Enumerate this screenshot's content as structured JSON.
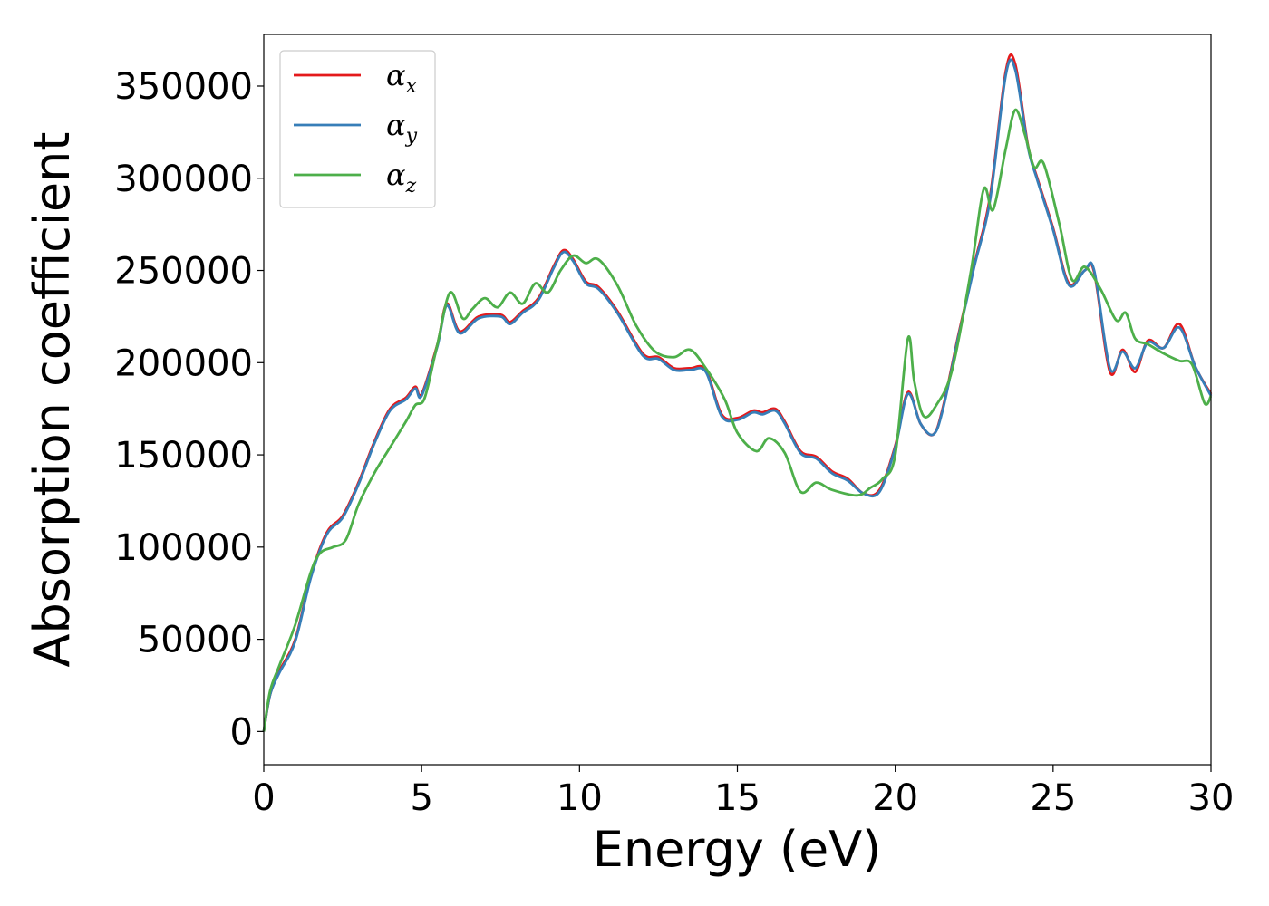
{
  "chart_data": {
    "type": "line",
    "xlabel": "Energy (eV)",
    "ylabel": "Absorption coefficient",
    "xlim": [
      0,
      30
    ],
    "ylim": [
      -18000,
      378000
    ],
    "xticks": [
      0,
      5,
      10,
      15,
      20,
      25,
      30
    ],
    "xtick_labels": [
      "0",
      "5",
      "10",
      "15",
      "20",
      "25",
      "30"
    ],
    "yticks": [
      0,
      50000,
      100000,
      150000,
      200000,
      250000,
      300000,
      350000
    ],
    "ytick_labels": [
      "0",
      "50000",
      "100000",
      "150000",
      "200000",
      "250000",
      "300000",
      "350000"
    ],
    "grid": false,
    "legend_position": "top-left",
    "series": [
      {
        "name": "α",
        "subscript": "x",
        "color": "#e41a1c",
        "x": [
          0,
          0.2,
          0.5,
          1,
          1.5,
          2,
          2.5,
          3,
          3.5,
          4,
          4.5,
          4.8,
          5,
          5.5,
          5.8,
          6.2,
          6.8,
          7.5,
          7.8,
          8.2,
          8.7,
          9.2,
          9.5,
          9.8,
          10.2,
          10.6,
          11.2,
          12,
          12.5,
          13,
          13.5,
          14,
          14.5,
          15,
          15.5,
          15.8,
          16.2,
          16.5,
          17,
          17.5,
          18,
          18.5,
          19,
          19.5,
          20,
          20.4,
          20.8,
          21.2,
          21.5,
          22,
          22.5,
          23,
          23.5,
          23.8,
          24.2,
          24.5,
          25,
          25.5,
          26,
          26.3,
          26.8,
          27.2,
          27.6,
          28,
          28.5,
          29,
          29.5,
          30
        ],
        "values": [
          0,
          20000,
          33000,
          50000,
          85000,
          108000,
          117000,
          135000,
          157000,
          175000,
          181000,
          187000,
          183000,
          210000,
          232000,
          217000,
          225000,
          226000,
          222000,
          228000,
          235000,
          253000,
          261000,
          256000,
          244000,
          241000,
          228000,
          205000,
          203000,
          197000,
          197000,
          196000,
          172000,
          170000,
          174000,
          173000,
          175000,
          168000,
          152000,
          149000,
          141000,
          137000,
          129000,
          131000,
          155000,
          184000,
          167000,
          161000,
          175000,
          215000,
          253000,
          290000,
          358000,
          362000,
          318000,
          300000,
          273000,
          243000,
          250000,
          249000,
          195000,
          207000,
          195000,
          212000,
          208000,
          221000,
          198000,
          183000
        ]
      },
      {
        "name": "α",
        "subscript": "y",
        "color": "#377eb8",
        "x": [
          0,
          0.2,
          0.5,
          1,
          1.5,
          2,
          2.5,
          3,
          3.5,
          4,
          4.5,
          4.8,
          5,
          5.5,
          5.8,
          6.2,
          6.8,
          7.5,
          7.8,
          8.2,
          8.7,
          9.2,
          9.5,
          9.8,
          10.2,
          10.6,
          11.2,
          12,
          12.5,
          13,
          13.5,
          14,
          14.5,
          15,
          15.5,
          15.8,
          16.2,
          16.5,
          17,
          17.5,
          18,
          18.5,
          19,
          19.5,
          20,
          20.4,
          20.8,
          21.2,
          21.5,
          22,
          22.5,
          23,
          23.5,
          23.8,
          24.2,
          24.5,
          25,
          25.5,
          26,
          26.3,
          26.8,
          27.2,
          27.6,
          28,
          28.5,
          29,
          29.5,
          30
        ],
        "values": [
          0,
          20000,
          32000,
          49000,
          84000,
          107000,
          116000,
          134000,
          156000,
          174000,
          180000,
          186000,
          182000,
          209000,
          231000,
          216000,
          224000,
          225000,
          221000,
          227000,
          234000,
          252000,
          260000,
          255000,
          243000,
          240000,
          227000,
          204000,
          202000,
          196000,
          196000,
          195000,
          171000,
          169000,
          173000,
          172000,
          174000,
          167000,
          151000,
          148000,
          140000,
          136000,
          129000,
          130000,
          154000,
          183000,
          167000,
          161000,
          174000,
          214000,
          252000,
          288000,
          356000,
          359000,
          317000,
          299000,
          272000,
          242000,
          250000,
          250000,
          197000,
          206000,
          197000,
          211000,
          208000,
          219000,
          198000,
          182000
        ]
      },
      {
        "name": "α",
        "subscript": "z",
        "color": "#4daf4a",
        "x": [
          0,
          0.2,
          0.5,
          1,
          1.5,
          1.8,
          2.2,
          2.6,
          3,
          3.5,
          4,
          4.5,
          4.8,
          5.1,
          5.5,
          5.9,
          6.3,
          6.6,
          7,
          7.4,
          7.8,
          8.2,
          8.6,
          9,
          9.4,
          9.8,
          10.2,
          10.6,
          11.2,
          11.8,
          12.4,
          13,
          13.5,
          14,
          14.6,
          15,
          15.6,
          16,
          16.5,
          17,
          17.5,
          18,
          18.8,
          19.2,
          19.6,
          20,
          20.4,
          20.6,
          20.9,
          21.3,
          21.8,
          22.4,
          22.8,
          23.1,
          23.5,
          23.8,
          24.1,
          24.4,
          24.7,
          25.2,
          25.6,
          26,
          26.5,
          27,
          27.3,
          27.6,
          28,
          28.5,
          29,
          29.4,
          29.8,
          30
        ],
        "values": [
          0,
          22000,
          36000,
          58000,
          87000,
          97000,
          100000,
          104000,
          123000,
          140000,
          154000,
          168000,
          177000,
          181000,
          210000,
          238000,
          224000,
          229000,
          235000,
          230000,
          238000,
          232000,
          243000,
          238000,
          250000,
          258000,
          254000,
          256000,
          242000,
          220000,
          206000,
          203000,
          207000,
          197000,
          180000,
          162000,
          152000,
          159000,
          151000,
          130000,
          135000,
          131000,
          128000,
          132000,
          137000,
          150000,
          213000,
          190000,
          171000,
          177000,
          196000,
          250000,
          294000,
          283000,
          316000,
          337000,
          324000,
          306000,
          308000,
          275000,
          245000,
          252000,
          240000,
          223000,
          227000,
          213000,
          210000,
          205000,
          201000,
          199000,
          178000,
          182000
        ]
      }
    ]
  }
}
